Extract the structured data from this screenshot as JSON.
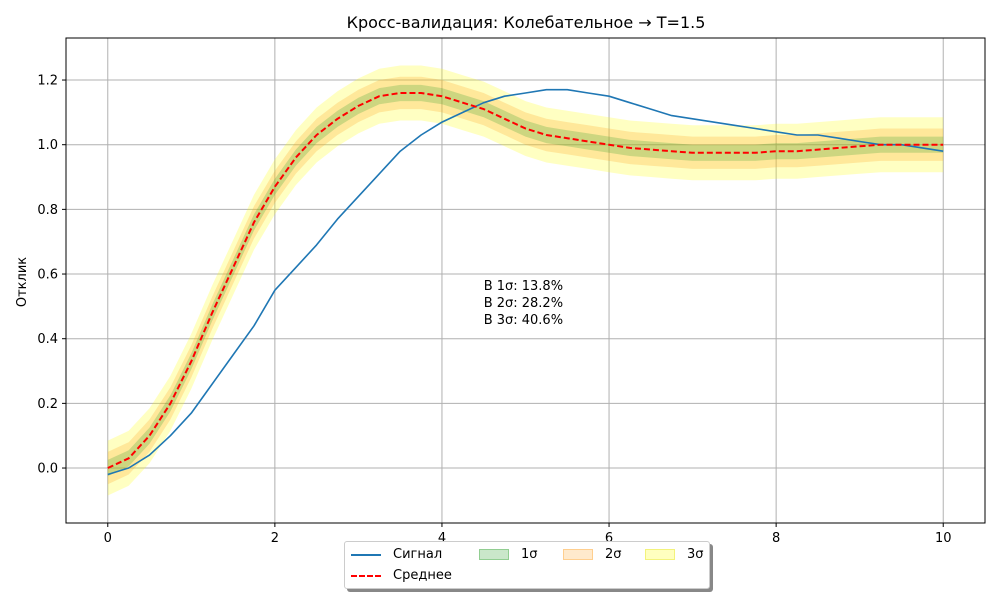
{
  "chart_data": {
    "type": "line",
    "title": "Кросс-валидация: Колебательное → T=1.5",
    "xlabel": "",
    "ylabel": "Отклик",
    "xlim": [
      -0.5,
      10.5
    ],
    "ylim": [
      -0.17,
      1.33
    ],
    "x_ticks": [
      0,
      2,
      4,
      6,
      8,
      10
    ],
    "x_tick_labels": [
      "0",
      "2",
      "4",
      "6",
      "8",
      "10"
    ],
    "y_ticks": [
      0.0,
      0.2,
      0.4,
      0.6,
      0.8,
      1.0,
      1.2
    ],
    "y_tick_labels": [
      "0.0",
      "0.2",
      "0.4",
      "0.6",
      "0.8",
      "1.0",
      "1.2"
    ],
    "grid": true,
    "series": [
      {
        "name": "Сигнал",
        "style": "solid",
        "color": "#1f77b4",
        "x": [
          0,
          0.25,
          0.5,
          0.75,
          1.0,
          1.25,
          1.5,
          1.75,
          2.0,
          2.25,
          2.5,
          2.75,
          3.0,
          3.25,
          3.5,
          3.75,
          4.0,
          4.25,
          4.5,
          4.75,
          5.0,
          5.25,
          5.5,
          5.75,
          6.0,
          6.25,
          6.5,
          6.75,
          7.0,
          7.25,
          7.5,
          7.75,
          8.0,
          8.25,
          8.5,
          8.75,
          9.0,
          9.25,
          9.5,
          9.75,
          10.0
        ],
        "y": [
          -0.02,
          0.0,
          0.04,
          0.1,
          0.17,
          0.26,
          0.35,
          0.44,
          0.55,
          0.62,
          0.69,
          0.77,
          0.84,
          0.91,
          0.98,
          1.03,
          1.07,
          1.1,
          1.13,
          1.15,
          1.16,
          1.17,
          1.17,
          1.16,
          1.15,
          1.13,
          1.11,
          1.09,
          1.08,
          1.07,
          1.06,
          1.05,
          1.04,
          1.03,
          1.03,
          1.02,
          1.01,
          1.0,
          1.0,
          0.99,
          0.98
        ]
      },
      {
        "name": "Среднее",
        "style": "dashed",
        "color": "#ff0000",
        "x": [
          0,
          0.25,
          0.5,
          0.75,
          1.0,
          1.25,
          1.5,
          1.75,
          2.0,
          2.25,
          2.5,
          2.75,
          3.0,
          3.25,
          3.5,
          3.75,
          4.0,
          4.25,
          4.5,
          4.75,
          5.0,
          5.25,
          5.5,
          5.75,
          6.0,
          6.25,
          6.5,
          6.75,
          7.0,
          7.25,
          7.5,
          7.75,
          8.0,
          8.25,
          8.5,
          8.75,
          9.0,
          9.25,
          9.5,
          9.75,
          10.0
        ],
        "y": [
          0.0,
          0.03,
          0.1,
          0.2,
          0.33,
          0.48,
          0.62,
          0.76,
          0.87,
          0.96,
          1.03,
          1.08,
          1.12,
          1.15,
          1.16,
          1.16,
          1.15,
          1.13,
          1.11,
          1.08,
          1.05,
          1.03,
          1.02,
          1.01,
          1.0,
          0.99,
          0.985,
          0.98,
          0.975,
          0.975,
          0.975,
          0.975,
          0.98,
          0.98,
          0.985,
          0.99,
          0.995,
          1.0,
          1.0,
          1.0,
          1.0
        ]
      }
    ],
    "bands": [
      {
        "name": "1σ",
        "half_width": 0.025,
        "color": "#2ca02c",
        "opacity": 0.2
      },
      {
        "name": "2σ",
        "half_width": 0.05,
        "color": "#ff9f1c",
        "opacity": 0.2
      },
      {
        "name": "3σ",
        "half_width": 0.085,
        "color": "#ffff00",
        "opacity": 0.2
      }
    ],
    "annotations": [
      "В 1σ: 13.8%",
      "В 2σ: 28.2%",
      "В 3σ: 40.6%"
    ],
    "annotation_anchor": {
      "x": 4.5,
      "y": 0.55
    },
    "legend_placement": "bottom-center"
  },
  "legend": {
    "signal": "Сигнал",
    "mean": "Среднее",
    "s1": "1σ",
    "s2": "2σ",
    "s3": "3σ"
  }
}
